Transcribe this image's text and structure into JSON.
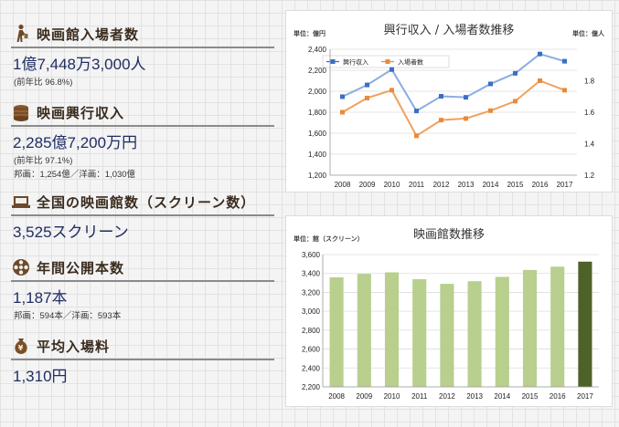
{
  "stats": {
    "attendance": {
      "title": "映画館入場者数",
      "value": "1億7,448万3,000人",
      "note": "(前年比 96.8%)"
    },
    "revenue": {
      "title": "映画興行収入",
      "value": "2,285億7,200万円",
      "note": "(前年比 97.1%)",
      "detail": "邦画：1,254億／洋画：1,030億"
    },
    "screens": {
      "title": "全国の映画館数（スクリーン数）",
      "value": "3,525スクリーン"
    },
    "films": {
      "title": "年間公開本数",
      "value": "1,187本",
      "detail": "邦画：594本／洋画：593本"
    },
    "price": {
      "title": "平均入場料",
      "value": "1,310円"
    }
  },
  "colors": {
    "revenue": "#8aaee3",
    "attendance": "#f0a15c",
    "bars": "#b8cf8e",
    "bar_highlight": "#4e6127",
    "accent_text": "#1f2d64"
  },
  "icons": {
    "attendance": "walking-person-icon",
    "revenue": "money-stack-icon",
    "screens": "laptop-screen-icon",
    "films": "film-reel-icon",
    "price": "money-bag-icon"
  },
  "chart_data": [
    {
      "type": "line",
      "title": "興行収入 / 入場者数推移",
      "unit_left": "単位：億円",
      "unit_right": "単位：億人",
      "x": [
        "2008",
        "2009",
        "2010",
        "2011",
        "2012",
        "2013",
        "2014",
        "2015",
        "2016",
        "2017"
      ],
      "series": [
        {
          "name": "興行収入",
          "axis": "left",
          "values": [
            1948,
            2060,
            2207,
            1812,
            1952,
            1942,
            2070,
            2171,
            2355,
            2286
          ]
        },
        {
          "name": "入場者数",
          "axis": "right",
          "values": [
            1.6,
            1.69,
            1.74,
            1.45,
            1.55,
            1.56,
            1.61,
            1.67,
            1.8,
            1.74
          ]
        }
      ],
      "ylim_left": [
        1200,
        2400
      ],
      "yticks_left": [
        "1,200",
        "1,400",
        "1,600",
        "1,800",
        "2,000",
        "2,200",
        "2,400"
      ],
      "ylim_right": [
        1.2,
        2.0
      ],
      "yticks_right": [
        "1.2",
        "1.4",
        "1.6",
        "1.8"
      ],
      "grid": true,
      "legend": "top-left"
    },
    {
      "type": "bar",
      "title": "映画館数推移",
      "unit": "単位：館（スクリーン）",
      "categories": [
        "2008",
        "2009",
        "2010",
        "2011",
        "2012",
        "2013",
        "2014",
        "2015",
        "2016",
        "2017"
      ],
      "values": [
        3359,
        3396,
        3412,
        3339,
        3290,
        3318,
        3364,
        3437,
        3472,
        3525
      ],
      "highlight": "2017",
      "ylim": [
        2200,
        3600
      ],
      "yticks": [
        "2,200",
        "2,400",
        "2,600",
        "2,800",
        "3,000",
        "3,200",
        "3,400",
        "3,600"
      ],
      "grid": true
    }
  ]
}
